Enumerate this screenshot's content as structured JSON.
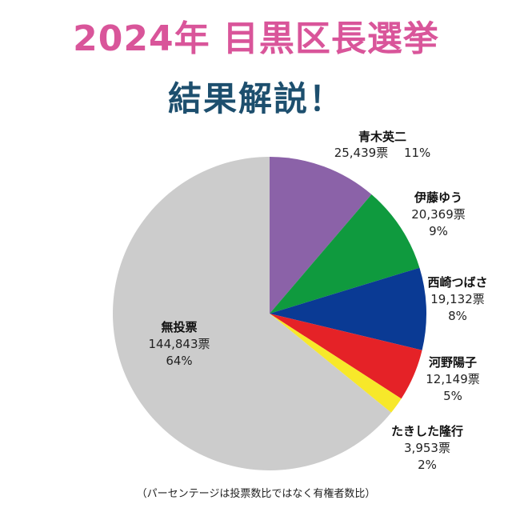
{
  "header": {
    "title": "2024年 目黒区長選挙",
    "subtitle": "結果解説！"
  },
  "chart_data": {
    "type": "pie",
    "slices": [
      {
        "name": "青木英二",
        "votes": 25439,
        "votes_label": "25,439票",
        "percent": 11,
        "percent_label": "11%",
        "color": "#8b62a8"
      },
      {
        "name": "伊藤ゆう",
        "votes": 20369,
        "votes_label": "20,369票",
        "percent": 9,
        "percent_label": "9%",
        "color": "#0f9a3e"
      },
      {
        "name": "西崎つばさ",
        "votes": 19132,
        "votes_label": "19,132票",
        "percent": 8,
        "percent_label": "8%",
        "color": "#0a3a94"
      },
      {
        "name": "河野陽子",
        "votes": 12149,
        "votes_label": "12,149票",
        "percent": 5,
        "percent_label": "5%",
        "color": "#e52227"
      },
      {
        "name": "たきした隆行",
        "votes": 3953,
        "votes_label": "3,953票",
        "percent": 2,
        "percent_label": "2%",
        "color": "#f7e82a"
      },
      {
        "name": "無投票",
        "votes": 144843,
        "votes_label": "144,843票",
        "percent": 64,
        "percent_label": "64%",
        "color": "#cccccc"
      }
    ]
  },
  "footnote": "（パーセンテージは投票数比ではなく有権者数比）"
}
